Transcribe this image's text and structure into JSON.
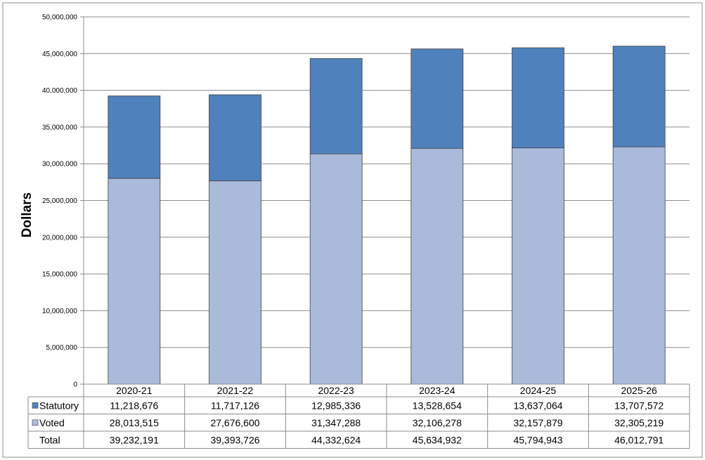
{
  "chart_data": {
    "type": "bar",
    "stacked": true,
    "title": "",
    "xlabel": "",
    "ylabel": "Dollars",
    "ylim": [
      0,
      50000000
    ],
    "ytick_step": 5000000,
    "y_tick_labels": [
      "0",
      "5,000,000",
      "10,000,000",
      "15,000,000",
      "20,000,000",
      "25,000,000",
      "30,000,000",
      "35,000,000",
      "40,000,000",
      "45,000,000",
      "50,000,000"
    ],
    "grid": true,
    "categories": [
      "2020-21",
      "2021-22",
      "2022-23",
      "2023-24",
      "2024-25",
      "2025-26"
    ],
    "series": [
      {
        "name": "Statutory",
        "color": "#4F81BD",
        "values": [
          11218676,
          11717126,
          12985336,
          13528654,
          13637064,
          13707572
        ],
        "labels": [
          "11,218,676",
          "11,717,126",
          "12,985,336",
          "13,528,654",
          "13,637,064",
          "13,707,572"
        ]
      },
      {
        "name": "Voted",
        "color": "#A9BADB",
        "values": [
          28013515,
          27676600,
          31347288,
          32106278,
          32157879,
          32305219
        ],
        "labels": [
          "28,013,515",
          "27,676,600",
          "31,347,288",
          "32,106,278",
          "32,157,879",
          "32,305,219"
        ]
      }
    ],
    "total": {
      "name": "Total",
      "values": [
        39232191,
        39393726,
        44332624,
        45634932,
        45794943,
        46012791
      ],
      "labels": [
        "39,232,191",
        "39,393,726",
        "44,332,624",
        "45,634,932",
        "45,794,943",
        "46,012,791"
      ]
    },
    "stack_order": [
      "Voted",
      "Statutory"
    ],
    "data_table": true
  }
}
